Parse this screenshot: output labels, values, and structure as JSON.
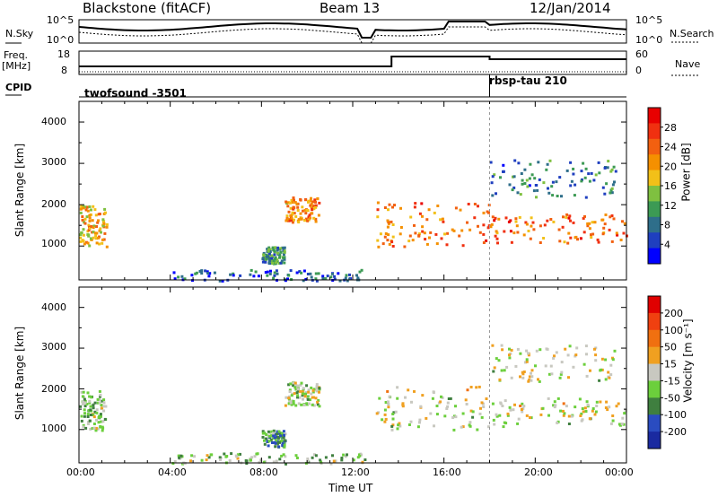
{
  "header": {
    "station": "Blackstone (fitACF)",
    "beam": "Beam 13",
    "date": "12/Jan/2014"
  },
  "summary": {
    "nsky_label": "N.Sky",
    "nsearch_label": "N.Search",
    "freq_label": "Freq.",
    "freq_unit": "[MHz]",
    "nave_label": "Nave",
    "cpid_label": "CPID",
    "noise_ticks": [
      "10^5",
      "10^0"
    ],
    "freq_ticks": [
      "18",
      "8"
    ],
    "nave_ticks": [
      "60",
      "0"
    ],
    "cpid_segments": [
      {
        "name": "twofsound -3501",
        "start_hour": 0
      },
      {
        "name": "rbsp-tau 210",
        "start_hour": 18
      }
    ]
  },
  "axes": {
    "ylabel": "Slant Range [km]",
    "xlabel": "Time UT",
    "x_ticks": [
      "00:00",
      "04:00",
      "08:00",
      "12:00",
      "16:00",
      "20:00",
      "00:00"
    ],
    "y_ticks": [
      "1000",
      "2000",
      "3000",
      "4000"
    ]
  },
  "power_scale": {
    "label": "Power [dB]",
    "ticks": [
      "4",
      "8",
      "12",
      "16",
      "20",
      "24",
      "28"
    ]
  },
  "velocity_scale": {
    "label": "Velocity [m s⁻¹]",
    "ticks": [
      "200",
      "100",
      "50",
      "15",
      "-15",
      "-50",
      "-100",
      "-200"
    ]
  },
  "colors": {
    "power": [
      "#0000ff",
      "#1f3fbf",
      "#2e6e8a",
      "#3c9a54",
      "#7fc040",
      "#f2c018",
      "#f59000",
      "#f26010",
      "#f03010",
      "#e80000"
    ],
    "velocity": [
      "#1a2aa0",
      "#2a4cc0",
      "#3f7f3f",
      "#6ccf3c",
      "#c8c8c0",
      "#f0a020",
      "#f07010",
      "#f04010",
      "#e00000"
    ]
  },
  "chart_data": [
    {
      "type": "heatmap",
      "quantity": "Power [dB]",
      "x_range_hours": [
        0,
        24
      ],
      "y_range_km": [
        180,
        4500
      ],
      "clim": [
        0,
        30
      ],
      "echo_regions": [
        {
          "t0": 0.0,
          "t1": 1.2,
          "r0": 1000,
          "r1": 2000,
          "level": 18
        },
        {
          "t0": 8.0,
          "t1": 9.0,
          "r0": 600,
          "r1": 1000,
          "level": 10
        },
        {
          "t0": 9.0,
          "t1": 10.5,
          "r0": 1600,
          "r1": 2200,
          "level": 20
        },
        {
          "t0": 4.0,
          "t1": 12.5,
          "r0": 180,
          "r1": 450,
          "level": 6
        },
        {
          "t0": 13.0,
          "t1": 18.0,
          "r0": 1000,
          "r1": 2100,
          "level": 22
        },
        {
          "t0": 18.0,
          "t1": 24.0,
          "r0": 1100,
          "r1": 1800,
          "level": 22
        },
        {
          "t0": 18.0,
          "t1": 23.5,
          "r0": 2200,
          "r1": 3100,
          "level": 8
        }
      ]
    },
    {
      "type": "heatmap",
      "quantity": "Velocity [m s-1]",
      "x_range_hours": [
        0,
        24
      ],
      "y_range_km": [
        180,
        4500
      ],
      "clim": [
        -200,
        200
      ],
      "echo_regions": [
        {
          "t0": 0.0,
          "t1": 1.2,
          "r0": 1000,
          "r1": 2000,
          "level": -40
        },
        {
          "t0": 8.0,
          "t1": 9.0,
          "r0": 600,
          "r1": 1000,
          "level": -80
        },
        {
          "t0": 9.0,
          "t1": 10.5,
          "r0": 1600,
          "r1": 2200,
          "level": -20
        },
        {
          "t0": 4.0,
          "t1": 12.5,
          "r0": 180,
          "r1": 450,
          "level": -40
        },
        {
          "t0": 13.0,
          "t1": 18.0,
          "r0": 1000,
          "r1": 2100,
          "level": 0
        },
        {
          "t0": 18.0,
          "t1": 24.0,
          "r0": 1100,
          "r1": 1800,
          "level": 0
        },
        {
          "t0": 18.0,
          "t1": 23.5,
          "r0": 2200,
          "r1": 3100,
          "level": 0
        }
      ]
    }
  ]
}
